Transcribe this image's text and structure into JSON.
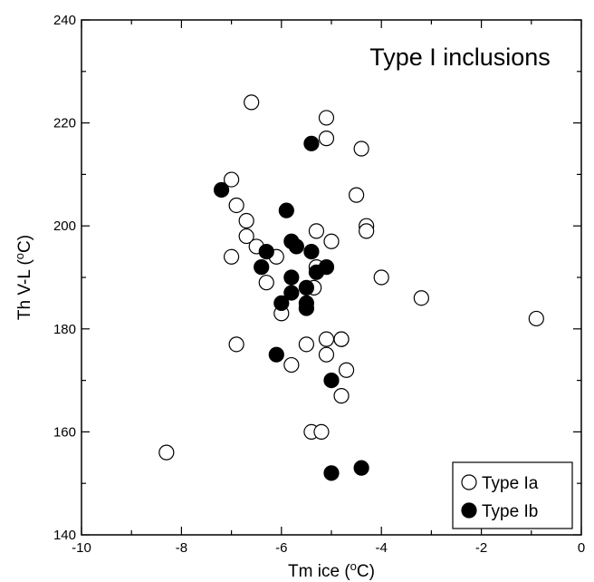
{
  "chart_data": {
    "type": "scatter",
    "title": "Type I inclusions",
    "xlabel_main": "Tm ice (",
    "xlabel_sup": "o",
    "xlabel_end": "C)",
    "ylabel_main": "Th V-L (",
    "ylabel_sup": "o",
    "ylabel_end": "C)",
    "xlim": [
      -10,
      0
    ],
    "ylim": [
      140,
      240
    ],
    "xticks": [
      -10,
      -8,
      -6,
      -4,
      -2,
      0
    ],
    "yticks": [
      140,
      160,
      180,
      200,
      220,
      240
    ],
    "legend_position": "bottom-right",
    "series": [
      {
        "name": "Type Ia",
        "marker": "open-circle",
        "color": "#000000",
        "points": [
          [
            -6.6,
            224
          ],
          [
            -5.1,
            221
          ],
          [
            -5.1,
            217
          ],
          [
            -4.4,
            215
          ],
          [
            -4.5,
            206
          ],
          [
            -7.0,
            209
          ],
          [
            -6.9,
            204
          ],
          [
            -6.7,
            201
          ],
          [
            -6.7,
            198
          ],
          [
            -6.5,
            196
          ],
          [
            -7.0,
            194
          ],
          [
            -6.3,
            189
          ],
          [
            -6.1,
            194
          ],
          [
            -5.3,
            199
          ],
          [
            -5.0,
            197
          ],
          [
            -4.3,
            200
          ],
          [
            -4.3,
            199
          ],
          [
            -4.0,
            190
          ],
          [
            -3.2,
            186
          ],
          [
            -0.9,
            182
          ],
          [
            -5.3,
            192
          ],
          [
            -5.35,
            188
          ],
          [
            -6.0,
            183
          ],
          [
            -6.9,
            177
          ],
          [
            -5.8,
            173
          ],
          [
            -5.5,
            177
          ],
          [
            -5.1,
            178
          ],
          [
            -5.1,
            175
          ],
          [
            -4.8,
            178
          ],
          [
            -4.8,
            178
          ],
          [
            -4.7,
            172
          ],
          [
            -4.8,
            167
          ],
          [
            -5.4,
            160
          ],
          [
            -5.2,
            160
          ],
          [
            -8.3,
            156
          ]
        ]
      },
      {
        "name": "Type Ib",
        "marker": "filled-circle",
        "color": "#000000",
        "points": [
          [
            -5.4,
            216
          ],
          [
            -7.2,
            207
          ],
          [
            -5.9,
            203
          ],
          [
            -5.8,
            197
          ],
          [
            -5.7,
            196
          ],
          [
            -5.4,
            195
          ],
          [
            -6.3,
            195
          ],
          [
            -6.4,
            192
          ],
          [
            -5.8,
            190
          ],
          [
            -5.3,
            191
          ],
          [
            -5.1,
            192
          ],
          [
            -5.5,
            188
          ],
          [
            -5.8,
            187
          ],
          [
            -6.0,
            185
          ],
          [
            -5.5,
            185
          ],
          [
            -5.5,
            184
          ],
          [
            -6.1,
            175
          ],
          [
            -5.0,
            170
          ],
          [
            -5.0,
            152
          ],
          [
            -4.4,
            153
          ]
        ]
      }
    ]
  }
}
